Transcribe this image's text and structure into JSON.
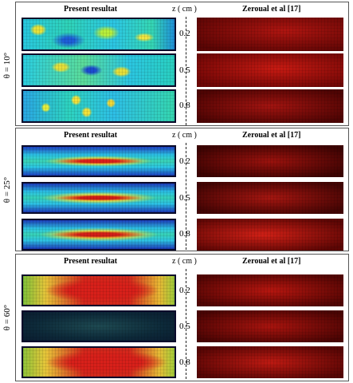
{
  "figure": {
    "panels": [
      {
        "theta_label": "θ = 10°",
        "left_header": "Present resultat",
        "z_header": "z ( cm )",
        "right_header": "Zeroual et al [17]",
        "rows": [
          {
            "z": "0.2",
            "sim_color": "cyan-yellow",
            "exp_color": "red"
          },
          {
            "z": "0.5",
            "sim_color": "cyan-yellow",
            "exp_color": "red"
          },
          {
            "z": "0.8",
            "sim_color": "cyan-yellow",
            "exp_color": "red"
          }
        ]
      },
      {
        "theta_label": "θ = 25°",
        "left_header": "Present resultat",
        "z_header": "z ( cm )",
        "right_header": "Zeroual et al [17]",
        "rows": [
          {
            "z": "0.2",
            "sim_color": "cyan-red-streaks",
            "exp_color": "red"
          },
          {
            "z": "0.5",
            "sim_color": "cyan-red-streaks",
            "exp_color": "red"
          },
          {
            "z": "0.8",
            "sim_color": "cyan-red-streaks",
            "exp_color": "red"
          }
        ]
      },
      {
        "theta_label": "θ = 60°",
        "left_header": "Present resultat",
        "z_header": "z ( cm )",
        "right_header": "Zeroual et al [17]",
        "rows": [
          {
            "z": "0.2",
            "sim_color": "red-core",
            "exp_color": "red"
          },
          {
            "z": "0.5",
            "sim_color": "dark-teal",
            "exp_color": "red"
          },
          {
            "z": "0.8",
            "sim_color": "red-core",
            "exp_color": "red"
          }
        ]
      }
    ],
    "colors": {
      "exp_red": "#c8120c",
      "exp_dark": "#3a0000",
      "sim_blue": "#1a3cc8",
      "sim_cyan": "#27c8e6",
      "sim_yellow": "#e2e93a",
      "sim_red": "#e0241a"
    }
  }
}
